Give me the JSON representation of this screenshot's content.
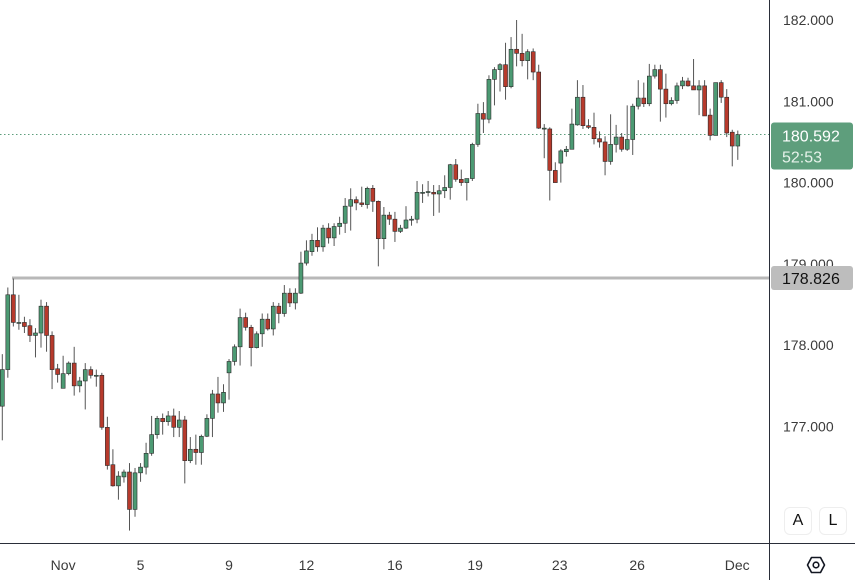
{
  "chart_data": {
    "type": "candlestick",
    "title": "",
    "colors": {
      "up": "#4c9a73",
      "down": "#b73a2c",
      "last_price_label": "#5e9e7c",
      "level_line": "#b8b8b8",
      "axis_text": "#3a3a3a"
    },
    "y_ticks": [
      "182.000",
      "181.000",
      "180.000",
      "179.000",
      "178.000",
      "177.000"
    ],
    "x_ticks": [
      "Nov",
      "5",
      "9",
      "12",
      "16",
      "19",
      "23",
      "26",
      "Dec"
    ],
    "ylim": [
      175.6,
      182.25
    ],
    "grid": false,
    "last_price": {
      "value": "180.592",
      "countdown": "52:53"
    },
    "level_line": {
      "value": "178.826"
    },
    "candles_ohlc": [
      [
        177.25,
        177.89,
        176.83,
        177.7
      ],
      [
        177.7,
        178.71,
        177.6,
        178.62
      ],
      [
        178.62,
        178.82,
        178.23,
        178.28
      ],
      [
        178.28,
        178.62,
        178.19,
        178.28
      ],
      [
        178.28,
        178.35,
        178.15,
        178.23
      ],
      [
        178.24,
        178.32,
        178.04,
        178.12
      ],
      [
        178.12,
        178.21,
        177.85,
        178.15
      ],
      [
        178.15,
        178.56,
        177.97,
        178.48
      ],
      [
        178.48,
        178.53,
        177.92,
        178.12
      ],
      [
        178.12,
        178.17,
        177.46,
        177.7
      ],
      [
        177.71,
        177.77,
        177.54,
        177.64
      ],
      [
        177.47,
        177.87,
        177.47,
        177.65
      ],
      [
        177.65,
        177.8,
        177.63,
        177.78
      ],
      [
        177.78,
        177.98,
        177.38,
        177.5
      ],
      [
        177.5,
        177.61,
        177.42,
        177.56
      ],
      [
        177.56,
        177.78,
        177.21,
        177.7
      ],
      [
        177.7,
        177.74,
        177.59,
        177.63
      ],
      [
        177.63,
        177.7,
        177.49,
        177.63
      ],
      [
        177.63,
        177.66,
        176.96,
        176.99
      ],
      [
        176.99,
        177.12,
        176.47,
        176.52
      ],
      [
        176.53,
        176.72,
        176.26,
        176.27
      ],
      [
        176.27,
        176.45,
        176.1,
        176.39
      ],
      [
        176.38,
        176.47,
        176.31,
        176.44
      ],
      [
        176.44,
        176.55,
        175.72,
        175.98
      ],
      [
        175.98,
        176.49,
        175.89,
        176.43
      ],
      [
        176.43,
        176.55,
        176.32,
        176.5
      ],
      [
        176.5,
        176.8,
        176.41,
        176.67
      ],
      [
        176.67,
        177.13,
        176.64,
        176.9
      ],
      [
        176.9,
        177.13,
        176.85,
        177.1
      ],
      [
        177.1,
        177.16,
        176.9,
        177.06
      ],
      [
        177.06,
        177.19,
        177.01,
        177.13
      ],
      [
        177.13,
        177.22,
        176.87,
        176.99
      ],
      [
        176.99,
        177.19,
        176.87,
        177.08
      ],
      [
        177.08,
        177.13,
        176.3,
        176.58
      ],
      [
        176.58,
        176.87,
        176.55,
        176.72
      ],
      [
        176.72,
        176.9,
        176.53,
        176.68
      ],
      [
        176.68,
        176.9,
        176.53,
        176.88
      ],
      [
        176.88,
        177.15,
        176.87,
        177.1
      ],
      [
        177.1,
        177.45,
        176.87,
        177.4
      ],
      [
        177.4,
        177.61,
        177.17,
        177.29
      ],
      [
        177.29,
        177.52,
        177.18,
        177.42
      ],
      [
        177.66,
        177.83,
        177.33,
        177.8
      ],
      [
        177.8,
        178.01,
        177.75,
        177.98
      ],
      [
        177.98,
        178.45,
        177.75,
        178.34
      ],
      [
        178.34,
        178.4,
        178.18,
        178.22
      ],
      [
        178.22,
        178.25,
        177.74,
        177.97
      ],
      [
        177.97,
        178.17,
        177.96,
        178.14
      ],
      [
        178.14,
        178.39,
        177.98,
        178.32
      ],
      [
        178.32,
        178.39,
        178.18,
        178.2
      ],
      [
        178.2,
        178.53,
        178.12,
        178.48
      ],
      [
        178.48,
        178.52,
        178.27,
        178.39
      ],
      [
        178.39,
        178.74,
        178.35,
        178.64
      ],
      [
        178.64,
        178.7,
        178.47,
        178.52
      ],
      [
        178.52,
        178.7,
        178.44,
        178.64
      ],
      [
        178.64,
        179.15,
        178.63,
        179.01
      ],
      [
        179.01,
        179.29,
        178.98,
        179.16
      ],
      [
        179.15,
        179.37,
        179.1,
        179.29
      ],
      [
        179.29,
        179.45,
        179.15,
        179.21
      ],
      [
        179.21,
        179.48,
        179.15,
        179.44
      ],
      [
        179.44,
        179.5,
        179.25,
        179.32
      ],
      [
        179.32,
        179.5,
        179.22,
        179.46
      ],
      [
        179.46,
        179.58,
        179.36,
        179.5
      ],
      [
        179.5,
        179.81,
        179.38,
        179.71
      ],
      [
        179.71,
        179.93,
        179.41,
        179.79
      ],
      [
        179.79,
        179.83,
        179.66,
        179.75
      ],
      [
        179.75,
        179.95,
        179.7,
        179.73
      ],
      [
        179.73,
        179.95,
        179.68,
        179.93
      ],
      [
        179.93,
        179.97,
        179.64,
        179.77
      ],
      [
        179.77,
        179.78,
        178.97,
        179.31
      ],
      [
        179.31,
        179.7,
        179.18,
        179.6
      ],
      [
        179.6,
        179.64,
        179.48,
        179.55
      ],
      [
        179.55,
        179.64,
        179.27,
        179.4
      ],
      [
        179.4,
        179.48,
        179.38,
        179.44
      ],
      [
        179.44,
        179.71,
        179.43,
        179.54
      ],
      [
        179.54,
        179.59,
        179.47,
        179.55
      ],
      [
        179.55,
        180.02,
        179.5,
        179.88
      ],
      [
        179.88,
        179.98,
        179.75,
        179.88
      ],
      [
        179.89,
        180.02,
        179.83,
        179.89
      ],
      [
        179.88,
        179.97,
        179.59,
        179.86
      ],
      [
        179.86,
        179.97,
        179.63,
        179.9
      ],
      [
        179.9,
        180.09,
        179.81,
        179.94
      ],
      [
        179.94,
        180.23,
        179.79,
        180.22
      ],
      [
        180.22,
        180.29,
        180.01,
        180.04
      ],
      [
        180.04,
        180.16,
        179.96,
        180.0
      ],
      [
        180.0,
        180.05,
        179.78,
        180.05
      ],
      [
        180.05,
        180.49,
        180.02,
        180.47
      ],
      [
        180.47,
        180.97,
        180.44,
        180.85
      ],
      [
        180.85,
        180.99,
        180.61,
        180.78
      ],
      [
        180.78,
        181.32,
        180.73,
        181.27
      ],
      [
        181.27,
        181.42,
        180.95,
        181.39
      ],
      [
        181.39,
        181.47,
        181.12,
        181.45
      ],
      [
        181.45,
        181.72,
        181.02,
        181.18
      ],
      [
        181.18,
        181.79,
        181.16,
        181.64
      ],
      [
        181.64,
        182.0,
        181.43,
        181.59
      ],
      [
        181.59,
        181.83,
        181.43,
        181.5
      ],
      [
        181.5,
        181.64,
        181.27,
        181.61
      ],
      [
        181.61,
        181.65,
        181.26,
        181.36
      ],
      [
        181.36,
        181.45,
        180.66,
        180.67
      ],
      [
        180.67,
        180.72,
        180.3,
        180.67
      ],
      [
        180.66,
        180.68,
        179.78,
        180.15
      ],
      [
        180.15,
        180.25,
        180.0,
        180.0
      ],
      [
        180.24,
        180.41,
        180.0,
        180.39
      ],
      [
        180.38,
        180.45,
        180.32,
        180.41
      ],
      [
        180.41,
        180.91,
        180.41,
        180.72
      ],
      [
        180.71,
        181.26,
        180.7,
        181.05
      ],
      [
        181.05,
        181.2,
        180.66,
        180.7
      ],
      [
        180.7,
        180.78,
        180.66,
        180.68
      ],
      [
        180.68,
        180.86,
        180.47,
        180.54
      ],
      [
        180.54,
        180.63,
        180.43,
        180.5
      ],
      [
        180.5,
        180.57,
        180.09,
        180.26
      ],
      [
        180.26,
        180.84,
        180.22,
        180.47
      ],
      [
        180.47,
        180.71,
        180.37,
        180.56
      ],
      [
        180.56,
        180.61,
        180.38,
        180.41
      ],
      [
        180.41,
        180.95,
        180.39,
        180.53
      ],
      [
        180.53,
        180.97,
        180.34,
        180.94
      ],
      [
        180.94,
        181.26,
        180.9,
        181.04
      ],
      [
        181.04,
        181.23,
        180.93,
        180.97
      ],
      [
        180.97,
        181.46,
        180.94,
        181.31
      ],
      [
        181.31,
        181.45,
        181.28,
        181.39
      ],
      [
        181.39,
        181.45,
        180.75,
        181.15
      ],
      [
        181.15,
        181.34,
        180.8,
        180.97
      ],
      [
        180.97,
        181.05,
        180.95,
        181.01
      ],
      [
        181.01,
        181.23,
        180.97,
        181.19
      ],
      [
        181.19,
        181.3,
        181.15,
        181.25
      ],
      [
        181.25,
        181.29,
        181.18,
        181.19
      ],
      [
        181.19,
        181.52,
        181.14,
        181.14
      ],
      [
        181.14,
        181.26,
        180.83,
        181.19
      ],
      [
        181.19,
        181.26,
        180.82,
        180.82
      ],
      [
        180.83,
        180.91,
        180.52,
        180.58
      ],
      [
        180.58,
        181.23,
        180.58,
        181.23
      ],
      [
        181.23,
        181.26,
        180.98,
        181.05
      ],
      [
        181.05,
        181.15,
        180.56,
        180.61
      ],
      [
        180.62,
        180.65,
        180.2,
        180.45
      ],
      [
        180.45,
        180.64,
        180.28,
        180.59
      ]
    ]
  },
  "controls": {
    "auto_scale_label": "A",
    "log_scale_label": "L",
    "settings_icon": "hexagon-settings-icon"
  }
}
